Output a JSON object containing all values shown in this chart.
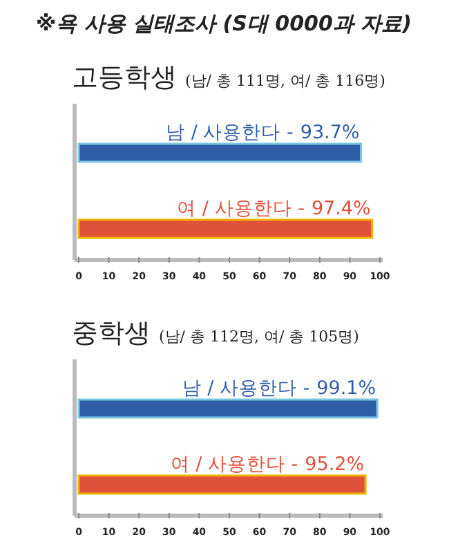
{
  "chart_data": [
    {
      "type": "bar",
      "orientation": "horizontal",
      "title": "고등학생",
      "subtitle": "(남/ 총 111명, 여/ 총 116명)",
      "annotations": [
        "※욕 사용 실태조사 (S대 0000과 자료)"
      ],
      "categories": [
        "남 / 사용한다 -",
        "여 / 사용한다 -"
      ],
      "values": [
        93.7,
        97.4
      ],
      "colors": [
        "#2f5ea8",
        "#e0503a"
      ],
      "value_labels": [
        "93.7%",
        "97.4%"
      ],
      "xlim": [
        0,
        100
      ],
      "xticks": [
        0,
        10,
        20,
        30,
        40,
        50,
        60,
        70,
        80,
        90,
        100
      ],
      "grid": false
    },
    {
      "type": "bar",
      "orientation": "horizontal",
      "title": "중학생",
      "subtitle": "(남/ 총 112명, 여/ 총 105명)",
      "categories": [
        "남 / 사용한다 -",
        "여 / 사용한다 -"
      ],
      "values": [
        99.1,
        95.2
      ],
      "colors": [
        "#2f5ea8",
        "#e0503a"
      ],
      "value_labels": [
        "99.1%",
        "95.2%"
      ],
      "xlim": [
        0,
        100
      ],
      "xticks": [
        0,
        10,
        20,
        30,
        40,
        50,
        60,
        70,
        80,
        90,
        100
      ],
      "grid": false
    }
  ]
}
